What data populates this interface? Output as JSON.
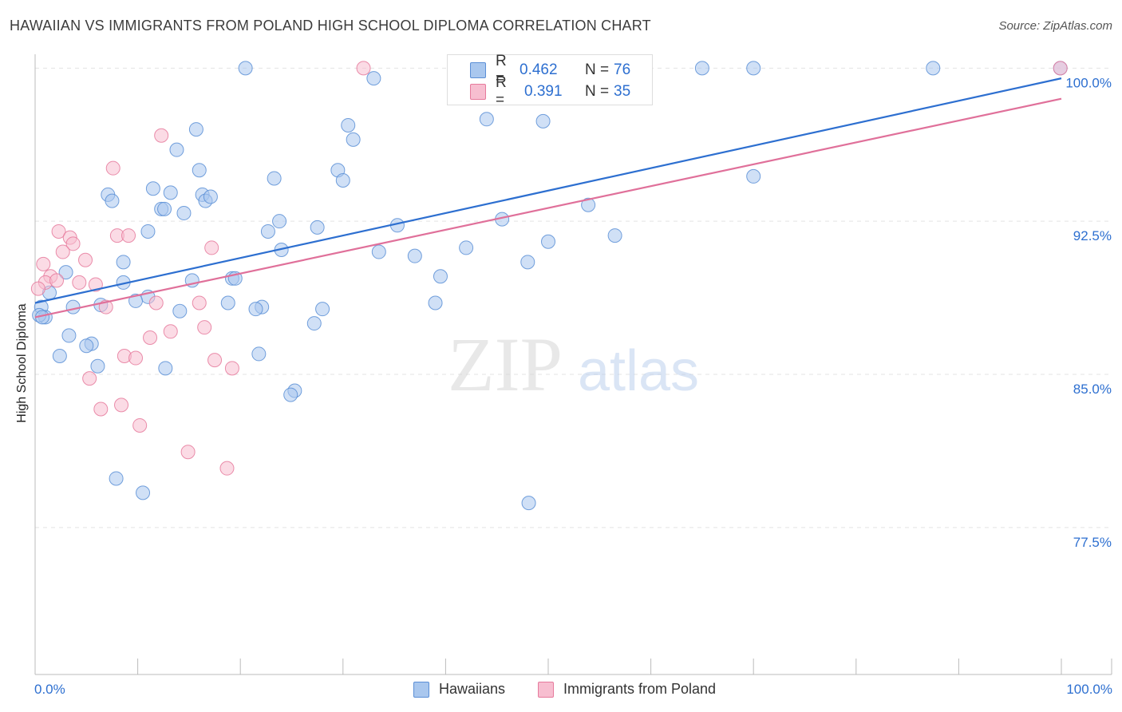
{
  "title": "HAWAIIAN VS IMMIGRANTS FROM POLAND HIGH SCHOOL DIPLOMA CORRELATION CHART",
  "source": "Source: ZipAtlas.com",
  "watermark": {
    "zip": "ZIP",
    "atlas": "atlas"
  },
  "legend": {
    "rows": [
      {
        "r_label": "R =",
        "r_value": "0.462",
        "n_label": "N =",
        "n_value": "76",
        "color": "#a9c7ee",
        "border": "#5b8fd6"
      },
      {
        "r_label": "R =",
        "r_value": "0.391",
        "n_label": "N =",
        "n_value": "35",
        "color": "#f7bed0",
        "border": "#e67a9c"
      }
    ]
  },
  "bottom_legend": {
    "s1": "Hawaiians",
    "s2": "Immigrants from Poland"
  },
  "x_labels": {
    "left": "0.0%",
    "right": "100.0%"
  },
  "y_axis_label": "High School Diploma",
  "colors": {
    "blue": "#2d6fd0",
    "blue_fill": "#a9c7ee",
    "pink": "#e0709a",
    "pink_fill": "#f7bed0",
    "grid": "#e3e3e3",
    "tick_text": "#2d6fd0"
  },
  "chart_data": {
    "type": "scatter",
    "title": "HAWAIIAN VS IMMIGRANTS FROM POLAND HIGH SCHOOL DIPLOMA CORRELATION CHART",
    "xlabel": "",
    "ylabel": "High School Diploma",
    "xlim": [
      0,
      100
    ],
    "ylim": [
      70.3,
      100.6
    ],
    "y_ticks": [
      77.5,
      85.0,
      92.5,
      100.0
    ],
    "y_tick_labels": [
      "77.5%",
      "85.0%",
      "92.5%",
      "100.0%"
    ],
    "x_tick_labels": [
      "0.0%",
      "100.0%"
    ],
    "grid": true,
    "legend_position": "top-center",
    "series": [
      {
        "name": "Hawaiians",
        "color": "#5b8fd6",
        "fill": "#a9c7ee",
        "trend": {
          "x0": 0,
          "y0": 88.5,
          "x1": 100,
          "y1": 99.5
        },
        "points": [
          [
            20.5,
            100
          ],
          [
            33.0,
            99.5
          ],
          [
            65.0,
            100
          ],
          [
            70.0,
            100
          ],
          [
            87.5,
            100
          ],
          [
            99.9,
            100
          ],
          [
            44.0,
            97.5
          ],
          [
            49.5,
            97.4
          ],
          [
            15.7,
            97.0
          ],
          [
            30.5,
            97.2
          ],
          [
            31.0,
            96.5
          ],
          [
            13.8,
            96.0
          ],
          [
            16.0,
            95.0
          ],
          [
            11.5,
            94.1
          ],
          [
            23.3,
            94.6
          ],
          [
            29.5,
            95.0
          ],
          [
            30.0,
            94.5
          ],
          [
            70.0,
            94.7
          ],
          [
            7.1,
            93.8
          ],
          [
            7.5,
            93.5
          ],
          [
            13.2,
            93.9
          ],
          [
            14.5,
            92.9
          ],
          [
            16.3,
            93.8
          ],
          [
            16.6,
            93.5
          ],
          [
            17.1,
            93.7
          ],
          [
            12.3,
            93.1
          ],
          [
            12.6,
            93.1
          ],
          [
            53.9,
            93.3
          ],
          [
            23.8,
            92.5
          ],
          [
            11.0,
            92.0
          ],
          [
            22.7,
            92.0
          ],
          [
            27.5,
            92.2
          ],
          [
            35.3,
            92.3
          ],
          [
            45.5,
            92.6
          ],
          [
            56.5,
            91.8
          ],
          [
            50.0,
            91.5
          ],
          [
            42.0,
            91.2
          ],
          [
            33.5,
            91.0
          ],
          [
            24.0,
            91.1
          ],
          [
            37.0,
            90.8
          ],
          [
            48.0,
            90.5
          ],
          [
            8.6,
            90.5
          ],
          [
            3.0,
            90.0
          ],
          [
            15.3,
            89.6
          ],
          [
            19.2,
            89.7
          ],
          [
            19.5,
            89.7
          ],
          [
            39.5,
            89.8
          ],
          [
            8.6,
            89.5
          ],
          [
            1.4,
            89.0
          ],
          [
            11.0,
            88.8
          ],
          [
            9.8,
            88.6
          ],
          [
            18.8,
            88.5
          ],
          [
            22.1,
            88.3
          ],
          [
            21.5,
            88.2
          ],
          [
            28.0,
            88.2
          ],
          [
            39.0,
            88.5
          ],
          [
            6.4,
            88.4
          ],
          [
            3.7,
            88.3
          ],
          [
            0.6,
            88.3
          ],
          [
            1.0,
            87.8
          ],
          [
            0.4,
            87.9
          ],
          [
            14.1,
            88.1
          ],
          [
            27.2,
            87.5
          ],
          [
            3.3,
            86.9
          ],
          [
            5.5,
            86.5
          ],
          [
            5.0,
            86.4
          ],
          [
            2.4,
            85.9
          ],
          [
            21.8,
            86.0
          ],
          [
            6.1,
            85.4
          ],
          [
            12.7,
            85.3
          ],
          [
            25.3,
            84.2
          ],
          [
            24.9,
            84.0
          ],
          [
            7.9,
            79.9
          ],
          [
            10.5,
            79.2
          ],
          [
            48.1,
            78.7
          ],
          [
            0.7,
            87.8
          ]
        ]
      },
      {
        "name": "Immigrants from Poland",
        "color": "#e67a9c",
        "fill": "#f7bed0",
        "trend": {
          "x0": 0,
          "y0": 87.8,
          "x1": 100,
          "y1": 98.5
        },
        "points": [
          [
            32.0,
            100
          ],
          [
            99.9,
            100
          ],
          [
            12.3,
            96.7
          ],
          [
            7.6,
            95.1
          ],
          [
            2.3,
            92.0
          ],
          [
            3.4,
            91.7
          ],
          [
            8.0,
            91.8
          ],
          [
            9.1,
            91.8
          ],
          [
            3.7,
            91.4
          ],
          [
            17.2,
            91.2
          ],
          [
            2.7,
            91.0
          ],
          [
            4.9,
            90.6
          ],
          [
            0.8,
            90.4
          ],
          [
            1.5,
            89.8
          ],
          [
            1.0,
            89.5
          ],
          [
            4.3,
            89.5
          ],
          [
            5.9,
            89.4
          ],
          [
            6.9,
            88.3
          ],
          [
            11.8,
            88.5
          ],
          [
            16.0,
            88.5
          ],
          [
            16.5,
            87.3
          ],
          [
            13.2,
            87.1
          ],
          [
            11.2,
            86.8
          ],
          [
            8.7,
            85.9
          ],
          [
            9.8,
            85.8
          ],
          [
            17.5,
            85.7
          ],
          [
            19.2,
            85.3
          ],
          [
            5.3,
            84.8
          ],
          [
            8.4,
            83.5
          ],
          [
            6.4,
            83.3
          ],
          [
            10.2,
            82.5
          ],
          [
            14.9,
            81.2
          ],
          [
            18.7,
            80.4
          ],
          [
            0.3,
            89.2
          ],
          [
            2.1,
            89.6
          ]
        ]
      }
    ]
  }
}
